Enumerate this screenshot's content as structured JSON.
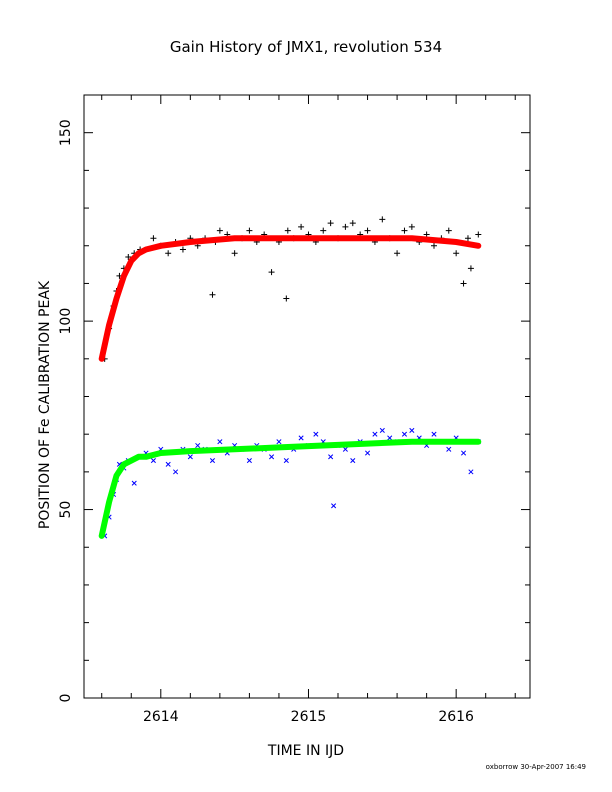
{
  "chart_data": {
    "type": "scatter",
    "title": "Gain History of JMX1, revolution 534",
    "xlabel": "TIME IN IJD",
    "ylabel": "POSITION OF Fe CALIBRATION PEAK",
    "xlim": [
      2613.48,
      2616.5
    ],
    "ylim": [
      0,
      160
    ],
    "xticks": [
      "2614",
      "2615",
      "2616"
    ],
    "yticks": [
      "0",
      "50",
      "100",
      "150"
    ],
    "grid": false,
    "colors": {
      "upper_points": "#000000",
      "upper_fit": "#ff0000",
      "lower_points": "#0000ff",
      "lower_fit": "#00ff00"
    },
    "series": [
      {
        "marker": "plus",
        "color": "#000000",
        "x": [
          2613.62,
          2613.65,
          2613.68,
          2613.7,
          2613.72,
          2613.75,
          2613.78,
          2613.82,
          2613.86,
          2613.9,
          2613.95,
          2614.0,
          2614.05,
          2614.1,
          2614.15,
          2614.2,
          2614.25,
          2614.3,
          2614.35,
          2614.37,
          2614.4,
          2614.45,
          2614.5,
          2614.55,
          2614.6,
          2614.65,
          2614.7,
          2614.75,
          2614.8,
          2614.85,
          2614.86,
          2614.9,
          2614.95,
          2615.0,
          2615.05,
          2615.1,
          2615.15,
          2615.2,
          2615.25,
          2615.3,
          2615.35,
          2615.4,
          2615.45,
          2615.5,
          2615.55,
          2615.6,
          2615.65,
          2615.7,
          2615.75,
          2615.8,
          2615.85,
          2615.9,
          2615.95,
          2616.0,
          2616.05,
          2616.08,
          2616.1,
          2616.15
        ],
        "y": [
          90,
          98,
          104,
          108,
          112,
          114,
          117,
          118,
          119,
          119,
          122,
          120,
          118,
          121,
          119,
          122,
          120,
          122,
          107,
          121,
          124,
          123,
          118,
          122,
          124,
          121,
          123,
          113,
          121,
          106,
          124,
          122,
          125,
          123,
          121,
          124,
          126,
          122,
          125,
          126,
          123,
          124,
          121,
          127,
          122,
          118,
          124,
          125,
          121,
          123,
          120,
          122,
          124,
          118,
          110,
          122,
          114,
          123
        ]
      },
      {
        "marker": "x",
        "color": "#0000ff",
        "x": [
          2613.62,
          2613.65,
          2613.68,
          2613.7,
          2613.72,
          2613.75,
          2613.78,
          2613.82,
          2613.86,
          2613.9,
          2613.95,
          2614.0,
          2614.05,
          2614.1,
          2614.15,
          2614.2,
          2614.25,
          2614.3,
          2614.35,
          2614.4,
          2614.45,
          2614.5,
          2614.55,
          2614.6,
          2614.65,
          2614.7,
          2614.75,
          2614.8,
          2614.85,
          2614.9,
          2614.95,
          2615.0,
          2615.05,
          2615.1,
          2615.15,
          2615.17,
          2615.2,
          2615.25,
          2615.3,
          2615.35,
          2615.4,
          2615.45,
          2615.5,
          2615.55,
          2615.6,
          2615.65,
          2615.7,
          2615.75,
          2615.8,
          2615.85,
          2615.9,
          2615.95,
          2616.0,
          2616.05,
          2616.1,
          2616.15
        ],
        "y": [
          43,
          48,
          54,
          58,
          62,
          61,
          63,
          57,
          64,
          65,
          63,
          66,
          62,
          60,
          66,
          64,
          67,
          66,
          63,
          68,
          65,
          67,
          66,
          63,
          67,
          66,
          64,
          68,
          63,
          66,
          69,
          67,
          70,
          68,
          64,
          51,
          67,
          66,
          63,
          68,
          65,
          70,
          71,
          69,
          68,
          70,
          71,
          69,
          67,
          70,
          68,
          66,
          69,
          65,
          60,
          68
        ]
      },
      {
        "marker": "fit",
        "color": "#ff0000",
        "x": [
          2613.6,
          2613.65,
          2613.7,
          2613.75,
          2613.8,
          2613.85,
          2613.9,
          2614.0,
          2614.2,
          2614.5,
          2614.8,
          2615.1,
          2615.4,
          2615.7,
          2616.0,
          2616.15
        ],
        "y": [
          90,
          99,
          106,
          112,
          116,
          118,
          119,
          120,
          121,
          122,
          122,
          122,
          122,
          122,
          121,
          120
        ]
      },
      {
        "marker": "fit",
        "color": "#00ff00",
        "x": [
          2613.6,
          2613.65,
          2613.7,
          2613.75,
          2613.8,
          2613.85,
          2613.9,
          2614.0,
          2614.2,
          2614.5,
          2614.8,
          2615.1,
          2615.4,
          2615.7,
          2616.0,
          2616.15
        ],
        "y": [
          43,
          52,
          59,
          62,
          63,
          64,
          64,
          65,
          65.5,
          66,
          66.5,
          67,
          67.5,
          68,
          68,
          68
        ]
      }
    ]
  },
  "footer": "oxborrow 30-Apr-2007 16:49"
}
